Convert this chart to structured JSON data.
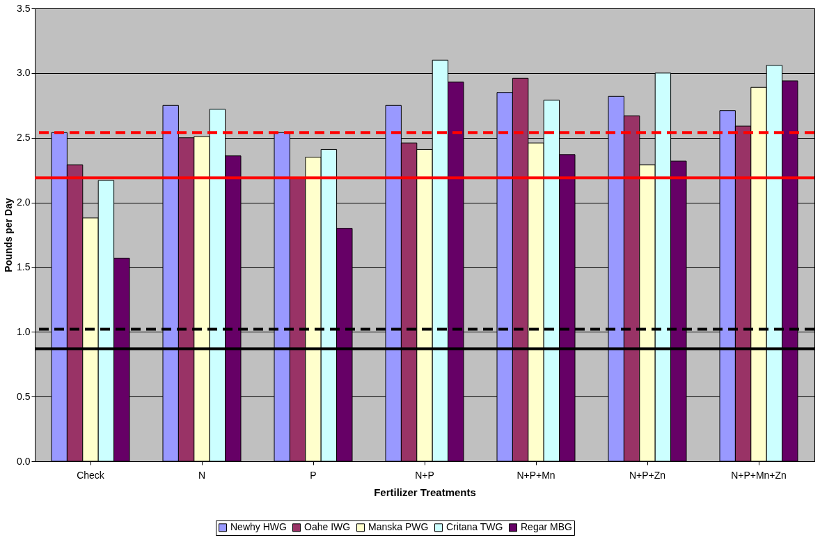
{
  "chart_data": {
    "type": "bar",
    "xlabel": "Fertilizer Treatments",
    "ylabel": "Pounds per Day",
    "categories": [
      "Check",
      "N",
      "P",
      "N+P",
      "N+P+Mn",
      "N+P+Zn",
      "N+P+Mn+Zn"
    ],
    "series": [
      {
        "name": "Newhy HWG",
        "color": "#9999ff",
        "values": [
          2.54,
          2.75,
          2.54,
          2.75,
          2.85,
          2.82,
          2.71
        ]
      },
      {
        "name": "Oahe IWG",
        "color": "#993366",
        "values": [
          2.29,
          2.5,
          2.19,
          2.46,
          2.96,
          2.67,
          2.59
        ]
      },
      {
        "name": "Manska PWG",
        "color": "#ffffcc",
        "values": [
          1.88,
          2.51,
          2.35,
          2.41,
          2.46,
          2.29,
          2.89
        ]
      },
      {
        "name": "Critana TWG",
        "color": "#ccffff",
        "values": [
          2.17,
          2.72,
          2.41,
          3.1,
          2.79,
          3.0,
          3.06
        ]
      },
      {
        "name": "Regar MBG",
        "color": "#660066",
        "values": [
          1.57,
          2.36,
          1.8,
          2.93,
          2.37,
          2.32,
          2.94
        ]
      }
    ],
    "ylim": [
      0,
      3.5
    ],
    "yticks": [
      {
        "value": 0,
        "label": "0.0"
      },
      {
        "value": 0.5,
        "label": "0.5"
      },
      {
        "value": 1,
        "label": "1.0"
      },
      {
        "value": 1.5,
        "label": "1.5"
      },
      {
        "value": 2,
        "label": "2.0"
      },
      {
        "value": 2.5,
        "label": "2.5"
      },
      {
        "value": 3,
        "label": "3.0"
      },
      {
        "value": 3.5,
        "label": "3.5"
      }
    ],
    "grid": "y",
    "legend": "bottom",
    "ref_lines": [
      {
        "axis": "y",
        "value": 2.54,
        "color": "#ff0000",
        "line_style": "dashed"
      },
      {
        "axis": "y",
        "value": 2.19,
        "color": "#ff0000",
        "line_style": "solid"
      },
      {
        "axis": "y",
        "value": 1.02,
        "color": "#000000",
        "line_style": "dashed"
      },
      {
        "axis": "y",
        "value": 0.87,
        "color": "#000000",
        "line_style": "solid"
      }
    ]
  }
}
